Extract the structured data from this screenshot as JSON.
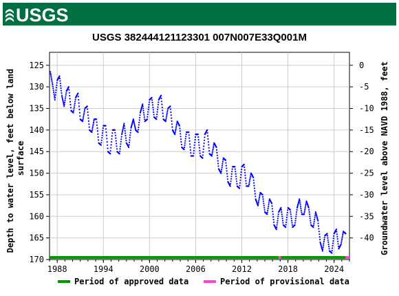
{
  "logo": {
    "text": "USGS",
    "color": "#006f41"
  },
  "chart_data": {
    "type": "scatter",
    "title": "USGS 382444121123301 007N007E33Q001M",
    "ylabel_left": "Depth to water level, feet below land surface",
    "ylabel_right": "Groundwater level above NAVD 1988, feet",
    "x_ticks": [
      "1988",
      "1994",
      "2000",
      "2006",
      "2012",
      "2018",
      "2024"
    ],
    "x_tick_years": [
      1988,
      1994,
      2000,
      2006,
      2012,
      2018,
      2024
    ],
    "xlim": [
      1987,
      2026
    ],
    "y_ticks_left": [
      125,
      130,
      135,
      140,
      145,
      150,
      155,
      160,
      165,
      170
    ],
    "ylim_left": [
      122,
      170
    ],
    "y_ticks_right": [
      0,
      -5,
      -10,
      -15,
      -20,
      -25,
      -30,
      -35,
      -40
    ],
    "right_axis_offset": 125,
    "grid": true,
    "series": [
      {
        "name": "Depth to water level",
        "color": "#0000ff",
        "points": [
          [
            1987.1,
            126.5
          ],
          [
            1987.4,
            129.5
          ],
          [
            1987.7,
            133.0
          ],
          [
            1988.0,
            128.5
          ],
          [
            1988.3,
            127.5
          ],
          [
            1988.6,
            132.0
          ],
          [
            1988.9,
            134.5
          ],
          [
            1989.2,
            131.0
          ],
          [
            1989.5,
            130.0
          ],
          [
            1989.8,
            135.5
          ],
          [
            1990.1,
            136.0
          ],
          [
            1990.4,
            132.5
          ],
          [
            1990.7,
            131.5
          ],
          [
            1991.0,
            137.5
          ],
          [
            1991.3,
            138.0
          ],
          [
            1991.6,
            135.0
          ],
          [
            1991.9,
            134.5
          ],
          [
            1992.2,
            140.0
          ],
          [
            1992.5,
            140.5
          ],
          [
            1992.8,
            137.5
          ],
          [
            1993.1,
            137.5
          ],
          [
            1993.4,
            143.0
          ],
          [
            1993.7,
            143.5
          ],
          [
            1994.0,
            139.0
          ],
          [
            1994.3,
            139.0
          ],
          [
            1994.6,
            145.0
          ],
          [
            1994.9,
            145.5
          ],
          [
            1995.2,
            140.0
          ],
          [
            1995.5,
            140.0
          ],
          [
            1995.8,
            145.0
          ],
          [
            1996.1,
            145.5
          ],
          [
            1996.4,
            141.0
          ],
          [
            1996.7,
            138.5
          ],
          [
            1997.0,
            143.0
          ],
          [
            1997.3,
            144.0
          ],
          [
            1997.6,
            139.5
          ],
          [
            1997.9,
            137.5
          ],
          [
            1998.2,
            140.0
          ],
          [
            1998.5,
            140.5
          ],
          [
            1998.8,
            136.0
          ],
          [
            1999.1,
            134.0
          ],
          [
            1999.4,
            138.0
          ],
          [
            1999.7,
            137.5
          ],
          [
            2000.0,
            133.0
          ],
          [
            2000.3,
            132.5
          ],
          [
            2000.6,
            137.0
          ],
          [
            2000.9,
            137.5
          ],
          [
            2001.2,
            133.0
          ],
          [
            2001.5,
            132.0
          ],
          [
            2001.8,
            137.5
          ],
          [
            2002.1,
            138.0
          ],
          [
            2002.4,
            135.0
          ],
          [
            2002.7,
            134.5
          ],
          [
            2003.0,
            140.0
          ],
          [
            2003.3,
            141.0
          ],
          [
            2003.6,
            138.0
          ],
          [
            2003.9,
            139.0
          ],
          [
            2004.2,
            144.0
          ],
          [
            2004.5,
            144.5
          ],
          [
            2004.8,
            140.5
          ],
          [
            2005.1,
            140.5
          ],
          [
            2005.4,
            146.0
          ],
          [
            2005.7,
            146.0
          ],
          [
            2006.0,
            141.0
          ],
          [
            2006.3,
            141.0
          ],
          [
            2006.6,
            146.0
          ],
          [
            2006.9,
            146.5
          ],
          [
            2007.2,
            141.0
          ],
          [
            2007.5,
            140.0
          ],
          [
            2007.8,
            145.5
          ],
          [
            2008.1,
            146.0
          ],
          [
            2008.4,
            143.0
          ],
          [
            2008.7,
            144.0
          ],
          [
            2009.0,
            149.0
          ],
          [
            2009.3,
            150.0
          ],
          [
            2009.6,
            146.5
          ],
          [
            2009.9,
            147.0
          ],
          [
            2010.2,
            152.0
          ],
          [
            2010.5,
            153.0
          ],
          [
            2010.8,
            148.5
          ],
          [
            2011.1,
            148.5
          ],
          [
            2011.4,
            153.0
          ],
          [
            2011.7,
            153.5
          ],
          [
            2012.0,
            148.5
          ],
          [
            2012.3,
            148.0
          ],
          [
            2012.6,
            153.0
          ],
          [
            2012.9,
            153.0
          ],
          [
            2013.2,
            150.0
          ],
          [
            2013.5,
            151.0
          ],
          [
            2013.8,
            156.0
          ],
          [
            2014.1,
            157.5
          ],
          [
            2014.4,
            154.5
          ],
          [
            2014.7,
            155.0
          ],
          [
            2015.0,
            159.0
          ],
          [
            2015.3,
            159.5
          ],
          [
            2015.6,
            156.0
          ],
          [
            2015.9,
            157.0
          ],
          [
            2016.2,
            162.0
          ],
          [
            2016.5,
            163.0
          ],
          [
            2016.8,
            159.0
          ],
          [
            2017.1,
            158.0
          ],
          [
            2017.4,
            162.0
          ],
          [
            2017.7,
            162.5
          ],
          [
            2018.0,
            158.0
          ],
          [
            2018.3,
            158.5
          ],
          [
            2018.6,
            162.5
          ],
          [
            2018.9,
            162.0
          ],
          [
            2019.2,
            158.0
          ],
          [
            2019.5,
            156.0
          ],
          [
            2019.8,
            159.5
          ],
          [
            2020.1,
            159.5
          ],
          [
            2020.4,
            156.5
          ],
          [
            2020.7,
            158.0
          ],
          [
            2021.0,
            162.0
          ],
          [
            2021.3,
            162.5
          ],
          [
            2021.6,
            159.0
          ],
          [
            2021.9,
            161.0
          ],
          [
            2022.2,
            166.0
          ],
          [
            2022.5,
            168.0
          ],
          [
            2022.8,
            164.5
          ],
          [
            2023.1,
            164.0
          ],
          [
            2023.4,
            168.0
          ],
          [
            2023.7,
            168.5
          ],
          [
            2024.0,
            164.0
          ],
          [
            2024.3,
            163.0
          ],
          [
            2024.6,
            167.5
          ],
          [
            2024.9,
            166.5
          ],
          [
            2025.2,
            163.5
          ],
          [
            2025.5,
            164.0
          ]
        ]
      }
    ],
    "periods": [
      {
        "name": "Period of approved data",
        "color": "#009900",
        "start": 1987,
        "end": 2016.8
      },
      {
        "name": "Period of provisional data",
        "color": "#ff44cc",
        "start": 2016.8,
        "end": 2017.1
      },
      {
        "name": "Period of approved data",
        "color": "#009900",
        "start": 2017.1,
        "end": 2025.5
      },
      {
        "name": "Period of provisional data",
        "color": "#ff44cc",
        "start": 2025.5,
        "end": 2026
      }
    ],
    "legend": [
      {
        "label": "Period of approved data",
        "color": "#009900"
      },
      {
        "label": "Period of provisional data",
        "color": "#ff44cc"
      }
    ],
    "legend_position": "bottom"
  }
}
